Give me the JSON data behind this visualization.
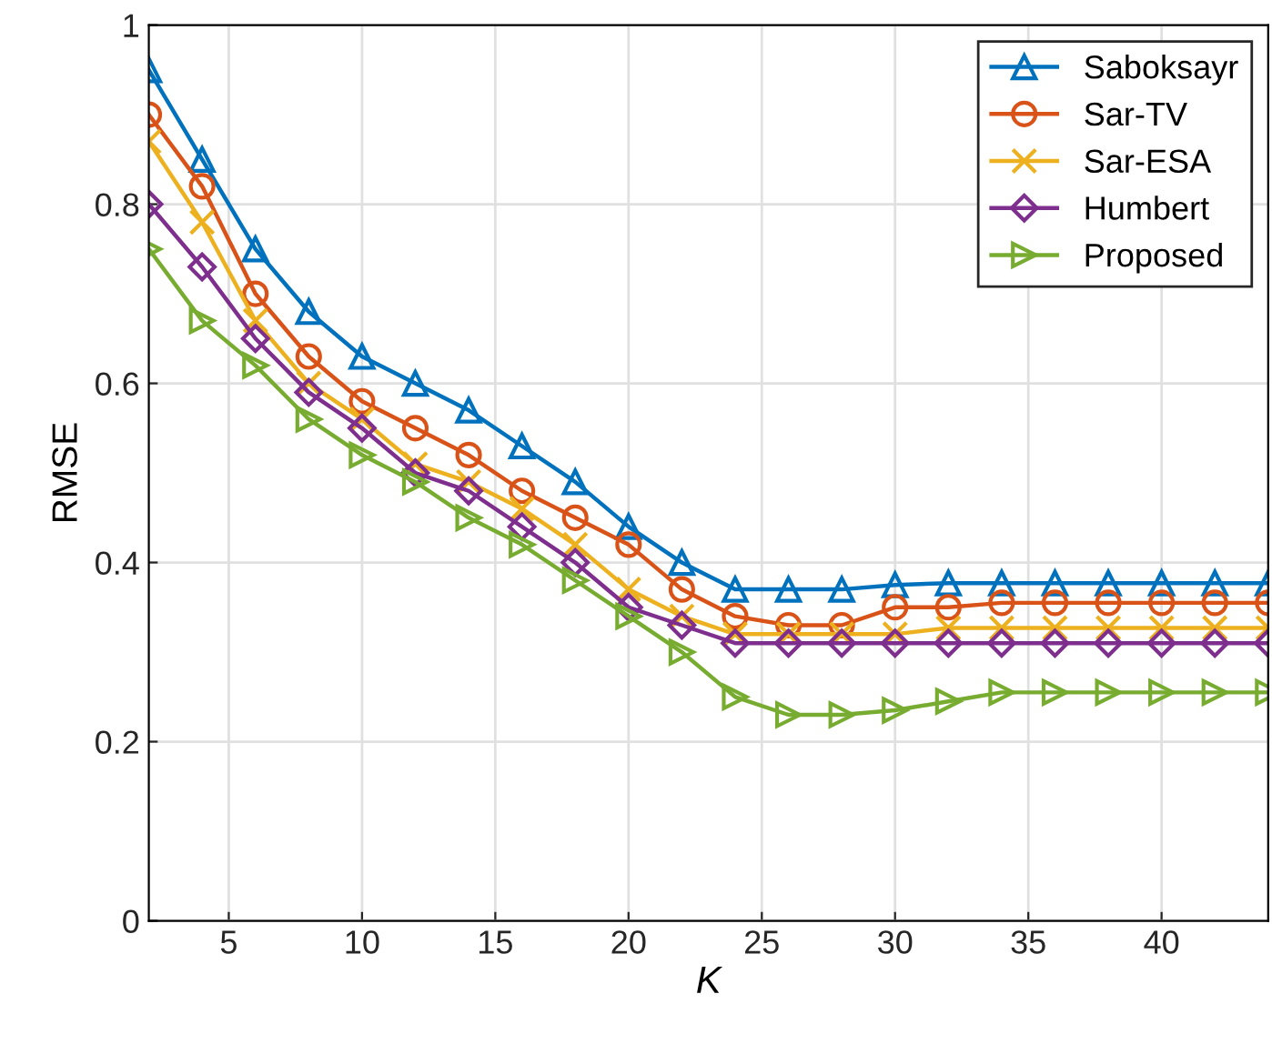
{
  "chart_data": {
    "type": "line",
    "xlabel": "K",
    "ylabel": "RMSE",
    "x": [
      2,
      4,
      6,
      8,
      10,
      12,
      14,
      16,
      18,
      20,
      22,
      24,
      26,
      28,
      30,
      32,
      34,
      36,
      38,
      40,
      42,
      44
    ],
    "series": [
      {
        "name": "Saboksayr",
        "color": "#0072bd",
        "marker": "triangle",
        "values": [
          0.95,
          0.85,
          0.75,
          0.68,
          0.63,
          0.6,
          0.57,
          0.53,
          0.49,
          0.44,
          0.4,
          0.37,
          0.37,
          0.37,
          0.375,
          0.377,
          0.377,
          0.377,
          0.377,
          0.377,
          0.377,
          0.377
        ]
      },
      {
        "name": "Sar-TV",
        "color": "#d95319",
        "marker": "circle",
        "values": [
          0.9,
          0.82,
          0.7,
          0.63,
          0.58,
          0.55,
          0.52,
          0.48,
          0.45,
          0.42,
          0.37,
          0.34,
          0.33,
          0.33,
          0.35,
          0.35,
          0.355,
          0.355,
          0.355,
          0.355,
          0.355,
          0.355
        ]
      },
      {
        "name": "Sar-ESA",
        "color": "#edb120",
        "marker": "cross",
        "values": [
          0.87,
          0.78,
          0.67,
          0.6,
          0.56,
          0.51,
          0.49,
          0.46,
          0.42,
          0.37,
          0.34,
          0.32,
          0.32,
          0.32,
          0.32,
          0.327,
          0.327,
          0.327,
          0.327,
          0.327,
          0.327,
          0.327
        ]
      },
      {
        "name": "Humbert",
        "color": "#7e2f8e",
        "marker": "diamond",
        "values": [
          0.8,
          0.73,
          0.65,
          0.59,
          0.55,
          0.5,
          0.48,
          0.44,
          0.4,
          0.35,
          0.33,
          0.31,
          0.31,
          0.31,
          0.31,
          0.31,
          0.31,
          0.31,
          0.31,
          0.31,
          0.31,
          0.31
        ]
      },
      {
        "name": "Proposed",
        "color": "#77ac30",
        "marker": "triangle_right",
        "values": [
          0.75,
          0.67,
          0.62,
          0.56,
          0.52,
          0.49,
          0.45,
          0.42,
          0.38,
          0.34,
          0.3,
          0.25,
          0.23,
          0.23,
          0.235,
          0.245,
          0.255,
          0.255,
          0.255,
          0.255,
          0.255,
          0.255
        ]
      }
    ],
    "xlim": [
      2,
      44
    ],
    "xticks": [
      5,
      10,
      15,
      20,
      25,
      30,
      35,
      40
    ],
    "ylim": [
      0,
      1
    ],
    "yticks": [
      0,
      0.2,
      0.4,
      0.6,
      0.8,
      1
    ],
    "grid": true,
    "legend": "top right",
    "line_style": "solid"
  }
}
